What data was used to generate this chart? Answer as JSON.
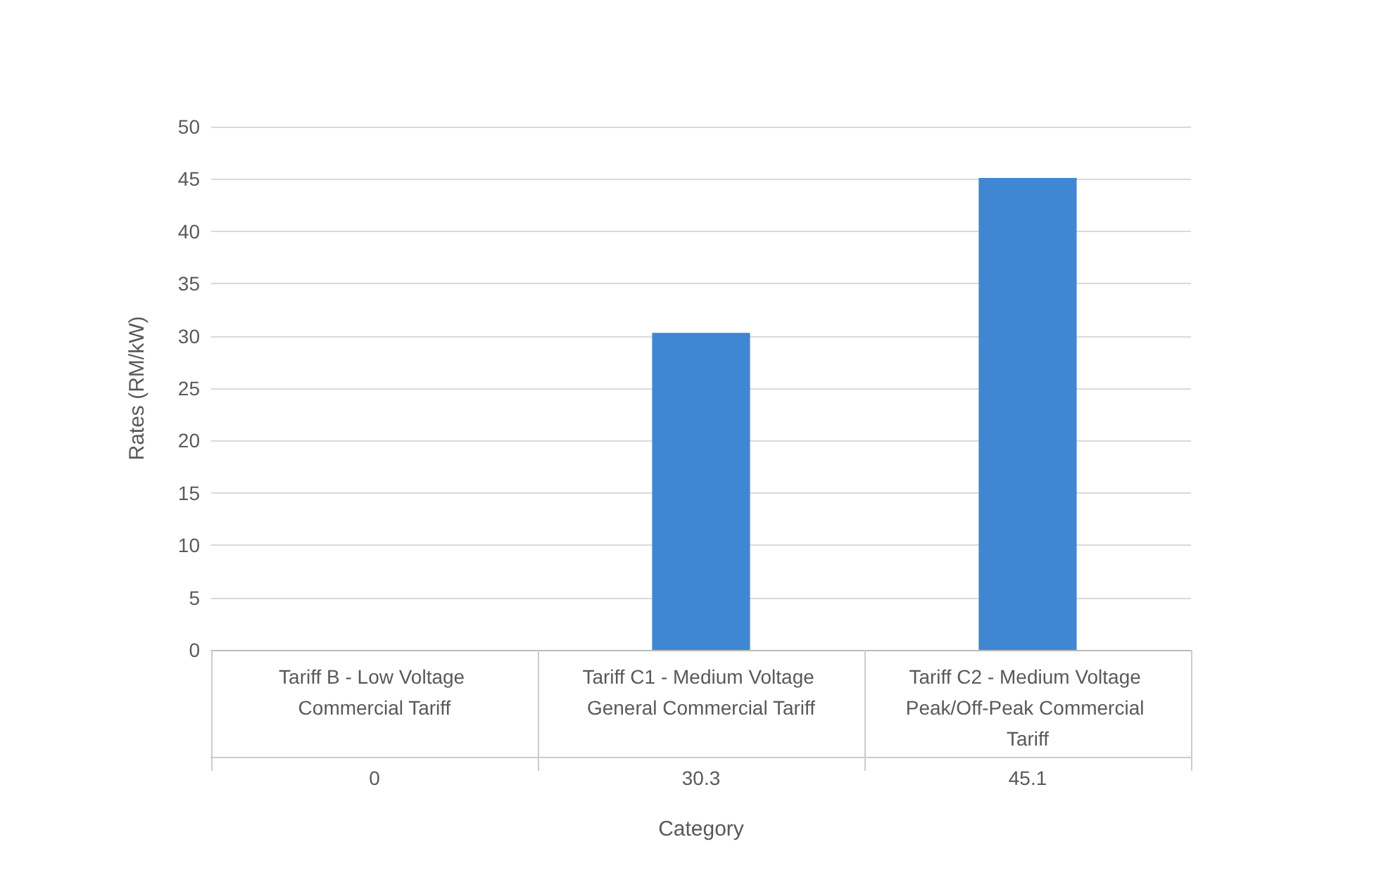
{
  "chart_data": {
    "type": "bar",
    "xlabel": "Category",
    "ylabel": "Rates (RM/kW)",
    "categories": [
      "Tariff B - Low Voltage Commercial Tariff",
      "Tariff C1 - Medium Voltage General Commercial Tariff",
      "Tariff C2 - Medium Voltage Peak/Off-Peak Commercial Tariff"
    ],
    "values": [
      0,
      30.3,
      45.1
    ],
    "color": "#3f87d2",
    "ylim": [
      0,
      50
    ],
    "yticks": [
      0,
      5,
      10,
      15,
      20,
      25,
      30,
      35,
      40,
      45,
      50
    ],
    "grid": "y",
    "data_labels": true
  }
}
